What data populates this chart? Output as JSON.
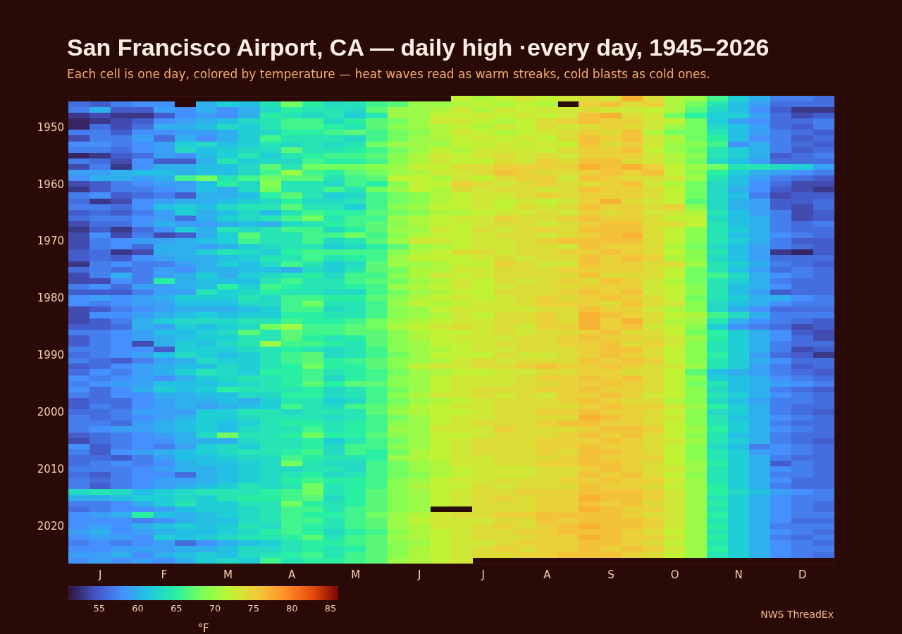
{
  "chart_data": {
    "type": "heatmap",
    "title": "San Francisco Airport, CA — daily high ·every day, 1945–2026",
    "subtitle": "Each cell is one day, colored by temperature — heat waves read as warm streaks, cold blasts as cold ones.",
    "categories": [
      null,
      "J",
      null,
      null,
      "F",
      null,
      null,
      "M",
      null,
      null,
      "A",
      null,
      null,
      "M",
      null,
      null,
      "J",
      null,
      null,
      "J",
      null,
      null,
      "A",
      null,
      null,
      "S",
      null,
      null,
      "O",
      null,
      null,
      "N",
      null,
      null,
      "D",
      null
    ],
    "y_categories": [
      null,
      null,
      null,
      null,
      null,
      "1950",
      null,
      null,
      null,
      null,
      null,
      null,
      null,
      null,
      null,
      "1960",
      null,
      null,
      null,
      null,
      null,
      null,
      null,
      null,
      null,
      "1970",
      null,
      null,
      null,
      null,
      null,
      null,
      null,
      null,
      null,
      "1980",
      null,
      null,
      null,
      null,
      null,
      null,
      null,
      null,
      null,
      "1990",
      null,
      null,
      null,
      null,
      null,
      null,
      null,
      null,
      null,
      "2000",
      null,
      null,
      null,
      null,
      null,
      null,
      null,
      null,
      null,
      "2010",
      null,
      null,
      null,
      null,
      null,
      null,
      null,
      null,
      null,
      "2020",
      null,
      null,
      null,
      null,
      null,
      null
    ],
    "cells": [
      [
        null,
        null,
        null,
        null,
        null,
        null,
        null,
        null,
        null,
        null,
        null,
        null,
        null,
        null,
        null,
        null,
        null,
        null,
        72,
        71,
        72,
        73,
        72,
        73,
        74,
        73,
        77,
        74,
        71,
        70,
        66,
        62,
        60,
        57,
        57,
        56
      ],
      [
        56,
        55,
        57,
        58,
        58,
        null,
        60,
        62,
        61,
        64,
        68,
        65,
        63,
        64,
        66,
        67,
        70,
        70,
        71,
        72,
        71,
        72,
        71,
        null,
        75,
        76,
        74,
        75,
        71,
        68,
        64,
        61,
        59,
        56,
        56,
        56
      ],
      [
        57,
        60,
        55,
        55,
        59,
        58,
        60,
        58,
        60,
        63,
        65,
        64,
        64,
        63,
        67,
        70,
        70,
        71,
        73,
        71,
        73,
        72,
        73,
        73,
        74,
        73,
        73,
        72,
        71,
        67,
        63,
        61,
        58,
        55,
        53,
        53
      ],
      [
        53,
        54,
        53,
        53,
        55,
        58,
        59,
        58,
        60,
        65,
        64,
        63,
        64,
        62,
        64,
        70,
        70,
        72,
        72,
        73,
        72,
        73,
        72,
        73,
        76,
        77,
        74,
        73,
        68,
        65,
        62,
        62,
        59,
        56,
        54,
        55
      ],
      [
        52,
        53,
        54,
        55,
        58,
        59,
        60,
        61,
        63,
        64,
        66,
        66,
        63,
        65,
        67,
        68,
        70,
        73,
        73,
        72,
        71,
        72,
        74,
        75,
        76,
        75,
        75,
        73,
        72,
        68,
        62,
        59,
        58,
        56,
        56,
        57
      ],
      [
        52,
        56,
        54,
        56,
        60,
        60,
        61,
        63,
        62,
        64,
        66,
        66,
        65,
        64,
        67,
        69,
        70,
        71,
        72,
        71,
        73,
        72,
        74,
        73,
        74,
        75,
        74,
        73,
        70,
        68,
        63,
        61,
        59,
        56,
        55,
        57
      ],
      [
        57,
        57,
        55,
        58,
        58,
        59,
        59,
        60,
        62,
        63,
        65,
        65,
        66,
        67,
        66,
        68,
        69,
        71,
        73,
        72,
        71,
        72,
        73,
        74,
        75,
        74,
        76,
        71,
        68,
        68,
        64,
        61,
        59,
        57,
        56,
        55
      ],
      [
        54,
        57,
        57,
        59,
        56,
        60,
        58,
        60,
        62,
        66,
        64,
        64,
        64,
        63,
        66,
        68,
        70,
        71,
        72,
        73,
        72,
        73,
        72,
        74,
        76,
        75,
        76,
        73,
        71,
        68,
        65,
        61,
        58,
        57,
        55,
        56
      ],
      [
        58,
        58,
        57,
        58,
        59,
        62,
        63,
        61,
        62,
        64,
        63,
        64,
        63,
        64,
        68,
        70,
        70,
        70,
        72,
        72,
        73,
        72,
        73,
        72,
        76,
        74,
        75,
        73,
        70,
        69,
        66,
        58,
        60,
        57,
        56,
        55
      ],
      [
        57,
        57,
        56,
        58,
        59,
        63,
        61,
        62,
        63,
        63,
        67,
        64,
        64,
        65,
        66,
        68,
        70,
        72,
        71,
        73,
        73,
        73,
        72,
        74,
        75,
        75,
        76,
        72,
        70,
        68,
        64,
        62,
        60,
        57,
        55,
        56
      ],
      [
        52,
        53,
        55,
        56,
        59,
        58,
        61,
        62,
        64,
        62,
        64,
        65,
        66,
        66,
        67,
        69,
        71,
        73,
        72,
        73,
        74,
        73,
        74,
        73,
        75,
        75,
        75,
        73,
        71,
        69,
        64,
        62,
        60,
        55,
        56,
        57
      ],
      [
        57,
        56,
        54,
        58,
        55,
        55,
        60,
        64,
        62,
        63,
        63,
        66,
        65,
        65,
        66,
        69,
        71,
        73,
        72,
        72,
        74,
        73,
        75,
        74,
        76,
        76,
        74,
        73,
        71,
        68,
        63,
        61,
        59,
        56,
        56,
        56
      ],
      [
        54,
        57,
        53,
        58,
        60,
        60,
        61,
        61,
        63,
        67,
        64,
        68,
        68,
        68,
        69,
        70,
        72,
        72,
        74,
        74,
        75,
        75,
        75,
        75,
        77,
        76,
        77,
        75,
        72,
        70,
        68,
        64,
        64,
        63,
        62,
        59
      ],
      [
        59,
        59,
        60,
        61,
        61,
        60,
        61,
        61,
        63,
        66,
        70,
        66,
        65,
        67,
        68,
        70,
        71,
        73,
        73,
        74,
        76,
        75,
        74,
        74,
        75,
        76,
        75,
        76,
        72,
        69,
        65,
        62,
        60,
        59,
        58,
        57
      ],
      [
        58,
        60,
        60,
        59,
        60,
        66,
        68,
        64,
        66,
        68,
        67,
        67,
        64,
        66,
        67,
        72,
        72,
        71,
        73,
        72,
        74,
        75,
        75,
        73,
        76,
        75,
        74,
        74,
        73,
        70,
        64,
        61,
        59,
        57,
        56,
        55
      ],
      [
        54,
        55,
        57,
        58,
        59,
        59,
        61,
        65,
        63,
        69,
        64,
        64,
        63,
        66,
        65,
        69,
        72,
        72,
        75,
        74,
        73,
        74,
        75,
        74,
        74,
        75,
        76,
        73,
        71,
        68,
        63,
        61,
        58,
        56,
        54,
        54
      ],
      [
        53,
        55,
        57,
        57,
        58,
        59,
        61,
        60,
        63,
        68,
        64,
        64,
        66,
        64,
        68,
        70,
        72,
        71,
        74,
        73,
        74,
        74,
        73,
        74,
        76,
        75,
        75,
        74,
        72,
        68,
        63,
        60,
        58,
        55,
        54,
        53
      ],
      [
        57,
        58,
        55,
        56,
        57,
        55,
        60,
        60,
        61,
        65,
        67,
        64,
        62,
        63,
        66,
        68,
        69,
        71,
        72,
        73,
        73,
        74,
        75,
        74,
        75,
        75,
        75,
        74,
        72,
        68,
        63,
        61,
        57,
        54,
        55,
        55
      ],
      [
        56,
        53,
        54,
        58,
        59,
        60,
        60,
        61,
        62,
        63,
        65,
        63,
        63,
        64,
        66,
        68,
        69,
        71,
        72,
        73,
        72,
        73,
        72,
        73,
        75,
        77,
        74,
        73,
        72,
        67,
        63,
        60,
        59,
        55,
        55,
        56
      ],
      [
        57,
        57,
        56,
        58,
        61,
        62,
        61,
        63,
        64,
        64,
        67,
        64,
        64,
        62,
        66,
        69,
        70,
        72,
        72,
        73,
        72,
        74,
        73,
        74,
        76,
        75,
        75,
        74,
        75,
        69,
        63,
        60,
        59,
        55,
        54,
        56
      ],
      [
        55,
        56,
        55,
        57,
        59,
        62,
        60,
        61,
        63,
        61,
        64,
        66,
        65,
        65,
        67,
        68,
        69,
        71,
        71,
        72,
        73,
        73,
        74,
        73,
        75,
        74,
        75,
        73,
        73,
        71,
        64,
        61,
        59,
        57,
        54,
        55
      ],
      [
        56,
        57,
        57,
        58,
        59,
        56,
        60,
        62,
        63,
        64,
        66,
        68,
        64,
        66,
        66,
        70,
        71,
        72,
        73,
        73,
        75,
        74,
        74,
        75,
        76,
        75,
        75,
        74,
        72,
        72,
        63,
        61,
        60,
        57,
        54,
        55
      ],
      [
        54,
        56,
        56,
        58,
        60,
        59,
        59,
        60,
        61,
        60,
        63,
        64,
        65,
        66,
        67,
        69,
        71,
        72,
        72,
        73,
        74,
        74,
        73,
        74,
        75,
        76,
        76,
        74,
        74,
        72,
        64,
        61,
        60,
        57,
        56,
        57
      ],
      [
        53,
        55,
        53,
        56,
        58,
        62,
        60,
        64,
        63,
        64,
        66,
        66,
        63,
        65,
        67,
        70,
        70,
        73,
        72,
        74,
        73,
        74,
        75,
        74,
        76,
        76,
        76,
        74,
        72,
        69,
        64,
        62,
        60,
        57,
        56,
        56
      ],
      [
        54,
        58,
        54,
        57,
        54,
        55,
        60,
        62,
        67,
        64,
        64,
        66,
        66,
        68,
        66,
        69,
        71,
        72,
        72,
        73,
        74,
        74,
        73,
        74,
        75,
        76,
        77,
        74,
        72,
        69,
        64,
        61,
        60,
        58,
        57,
        56
      ],
      [
        54,
        57,
        58,
        59,
        59,
        60,
        61,
        62,
        66,
        64,
        64,
        66,
        63,
        64,
        67,
        70,
        73,
        73,
        72,
        73,
        73,
        74,
        75,
        76,
        76,
        76,
        76,
        74,
        72,
        69,
        64,
        62,
        60,
        57,
        55,
        55
      ],
      [
        54,
        57,
        58,
        56,
        60,
        60,
        59,
        60,
        62,
        63,
        64,
        64,
        62,
        63,
        65,
        67,
        70,
        71,
        72,
        73,
        73,
        74,
        74,
        73,
        76,
        75,
        75,
        74,
        71,
        68,
        63,
        61,
        59,
        57,
        56,
        55
      ],
      [
        55,
        56,
        53,
        54,
        60,
        60,
        62,
        64,
        63,
        62,
        65,
        66,
        66,
        66,
        66,
        69,
        71,
        72,
        74,
        74,
        73,
        74,
        74,
        75,
        75,
        76,
        75,
        74,
        72,
        69,
        64,
        61,
        59,
        53,
        52,
        55
      ],
      [
        55,
        56,
        55,
        58,
        59,
        60,
        60,
        61,
        62,
        64,
        64,
        66,
        64,
        65,
        66,
        70,
        72,
        72,
        72,
        73,
        74,
        73,
        74,
        74,
        76,
        75,
        76,
        75,
        71,
        69,
        63,
        61,
        59,
        56,
        56,
        56
      ],
      [
        53,
        57,
        58,
        57,
        57,
        59,
        60,
        62,
        61,
        63,
        66,
        64,
        62,
        63,
        67,
        70,
        70,
        71,
        72,
        72,
        75,
        74,
        73,
        73,
        76,
        75,
        75,
        74,
        74,
        70,
        64,
        62,
        60,
        57,
        56,
        55
      ],
      [
        56,
        57,
        56,
        57,
        59,
        58,
        60,
        60,
        61,
        61,
        60,
        63,
        62,
        64,
        67,
        68,
        71,
        71,
        73,
        73,
        74,
        74,
        74,
        75,
        75,
        75,
        75,
        74,
        72,
        68,
        64,
        61,
        59,
        56,
        57,
        56
      ],
      [
        54,
        57,
        60,
        57,
        59,
        60,
        62,
        60,
        62,
        63,
        64,
        65,
        63,
        66,
        66,
        69,
        71,
        73,
        72,
        73,
        74,
        74,
        74,
        74,
        76,
        74,
        74,
        74,
        72,
        68,
        66,
        63,
        60,
        58,
        57,
        56
      ],
      [
        54,
        54,
        58,
        57,
        65,
        60,
        61,
        61,
        61,
        64,
        66,
        64,
        64,
        66,
        67,
        68,
        70,
        71,
        73,
        72,
        74,
        73,
        74,
        75,
        74,
        76,
        75,
        73,
        71,
        68,
        64,
        62,
        60,
        57,
        56,
        56
      ],
      [
        57,
        58,
        56,
        59,
        59,
        60,
        61,
        65,
        62,
        66,
        65,
        64,
        64,
        65,
        66,
        70,
        71,
        72,
        73,
        72,
        73,
        74,
        74,
        74,
        75,
        75,
        75,
        73,
        72,
        69,
        64,
        61,
        60,
        58,
        56,
        56
      ],
      [
        55,
        55,
        55,
        57,
        59,
        59,
        64,
        62,
        63,
        65,
        64,
        64,
        63,
        63,
        66,
        68,
        70,
        71,
        72,
        72,
        74,
        74,
        74,
        75,
        76,
        75,
        76,
        73,
        72,
        69,
        64,
        61,
        59,
        55,
        56,
        56
      ],
      [
        58,
        59,
        58,
        59,
        60,
        62,
        62,
        62,
        64,
        63,
        66,
        66,
        65,
        65,
        67,
        69,
        71,
        72,
        73,
        72,
        73,
        74,
        75,
        74,
        75,
        76,
        75,
        74,
        72,
        68,
        64,
        62,
        60,
        60,
        58,
        57
      ],
      [
        58,
        57,
        58,
        59,
        59,
        61,
        61,
        61,
        63,
        63,
        66,
        68,
        64,
        64,
        66,
        70,
        72,
        71,
        72,
        73,
        73,
        74,
        75,
        75,
        75,
        74,
        76,
        74,
        73,
        69,
        63,
        61,
        60,
        58,
        57,
        57
      ],
      [
        54,
        55,
        57,
        58,
        59,
        60,
        60,
        60,
        61,
        62,
        66,
        66,
        63,
        64,
        66,
        69,
        70,
        72,
        73,
        73,
        73,
        73,
        74,
        74,
        76,
        75,
        75,
        73,
        71,
        69,
        63,
        60,
        58,
        56,
        56,
        56
      ],
      [
        54,
        58,
        58,
        59,
        60,
        61,
        62,
        61,
        62,
        62,
        65,
        65,
        64,
        64,
        66,
        69,
        70,
        71,
        73,
        72,
        74,
        74,
        75,
        74,
        77,
        76,
        75,
        74,
        72,
        71,
        66,
        63,
        60,
        57,
        57,
        57
      ],
      [
        54,
        55,
        57,
        60,
        62,
        63,
        63,
        63,
        64,
        64,
        66,
        65,
        65,
        66,
        68,
        70,
        71,
        72,
        73,
        73,
        74,
        74,
        75,
        74,
        77,
        75,
        77,
        74,
        71,
        70,
        64,
        60,
        58,
        57,
        56,
        55
      ],
      [
        55,
        55,
        56,
        60,
        59,
        62,
        61,
        62,
        63,
        68,
        70,
        66,
        66,
        67,
        68,
        71,
        72,
        73,
        74,
        73,
        74,
        73,
        75,
        75,
        77,
        75,
        76,
        73,
        72,
        69,
        62,
        58,
        57,
        56,
        54,
        55
      ],
      [
        57,
        57,
        58,
        59,
        61,
        61,
        62,
        63,
        67,
        64,
        67,
        66,
        66,
        67,
        67,
        69,
        71,
        72,
        72,
        73,
        74,
        73,
        74,
        74,
        75,
        76,
        74,
        74,
        72,
        68,
        65,
        62,
        60,
        58,
        55,
        54
      ],
      [
        55,
        57,
        58,
        59,
        60,
        61,
        62,
        62,
        64,
        64,
        67,
        65,
        64,
        65,
        67,
        69,
        71,
        72,
        73,
        73,
        73,
        74,
        74,
        75,
        76,
        75,
        75,
        74,
        73,
        70,
        65,
        62,
        60,
        58,
        56,
        54
      ],
      [
        55,
        57,
        58,
        54,
        60,
        62,
        61,
        63,
        64,
        70,
        66,
        66,
        65,
        64,
        67,
        69,
        70,
        72,
        72,
        73,
        74,
        74,
        74,
        75,
        75,
        76,
        74,
        75,
        73,
        69,
        64,
        62,
        60,
        57,
        56,
        56
      ],
      [
        57,
        57,
        58,
        58,
        55,
        62,
        62,
        62,
        63,
        64,
        65,
        64,
        63,
        64,
        66,
        69,
        70,
        71,
        72,
        73,
        73,
        74,
        74,
        74,
        75,
        76,
        76,
        74,
        72,
        69,
        64,
        62,
        60,
        57,
        54,
        55
      ],
      [
        56,
        57,
        58,
        59,
        61,
        63,
        62,
        61,
        62,
        64,
        66,
        67,
        63,
        64,
        66,
        68,
        70,
        72,
        72,
        72,
        74,
        73,
        73,
        74,
        75,
        76,
        75,
        74,
        72,
        69,
        65,
        62,
        59,
        56,
        55,
        53
      ],
      [
        57,
        56,
        55,
        57,
        59,
        60,
        63,
        62,
        62,
        64,
        66,
        67,
        65,
        66,
        67,
        69,
        70,
        71,
        73,
        74,
        73,
        74,
        74,
        74,
        76,
        75,
        76,
        75,
        72,
        69,
        64,
        62,
        60,
        58,
        56,
        56
      ],
      [
        55,
        56,
        58,
        59,
        60,
        61,
        61,
        63,
        62,
        64,
        65,
        68,
        65,
        65,
        67,
        69,
        72,
        73,
        73,
        74,
        74,
        75,
        76,
        75,
        75,
        76,
        75,
        74,
        73,
        70,
        64,
        62,
        59,
        57,
        55,
        56
      ],
      [
        56,
        58,
        57,
        59,
        60,
        62,
        64,
        63,
        62,
        65,
        65,
        66,
        64,
        65,
        66,
        68,
        70,
        71,
        72,
        72,
        73,
        73,
        74,
        74,
        75,
        75,
        74,
        74,
        72,
        67,
        61,
        60,
        59,
        57,
        56,
        55
      ],
      [
        58,
        57,
        58,
        59,
        58,
        60,
        62,
        63,
        64,
        64,
        65,
        66,
        63,
        65,
        66,
        69,
        70,
        72,
        73,
        73,
        73,
        74,
        75,
        75,
        76,
        75,
        76,
        74,
        72,
        69,
        62,
        61,
        60,
        58,
        57,
        56
      ],
      [
        57,
        58,
        59,
        59,
        61,
        61,
        61,
        62,
        63,
        64,
        65,
        67,
        65,
        67,
        67,
        69,
        70,
        72,
        73,
        73,
        73,
        74,
        74,
        75,
        75,
        76,
        75,
        74,
        72,
        68,
        64,
        61,
        60,
        59,
        58,
        57
      ],
      [
        58,
        56,
        58,
        60,
        62,
        61,
        62,
        65,
        64,
        64,
        64,
        65,
        63,
        64,
        66,
        68,
        70,
        72,
        73,
        74,
        74,
        74,
        75,
        75,
        76,
        75,
        75,
        74,
        72,
        69,
        63,
        61,
        60,
        57,
        56,
        55
      ],
      [
        57,
        56,
        58,
        58,
        60,
        60,
        61,
        61,
        63,
        63,
        65,
        65,
        63,
        64,
        66,
        69,
        71,
        73,
        73,
        74,
        73,
        74,
        73,
        75,
        75,
        76,
        75,
        73,
        72,
        69,
        64,
        62,
        60,
        58,
        57,
        56
      ],
      [
        55,
        56,
        56,
        58,
        59,
        60,
        60,
        61,
        60,
        62,
        64,
        64,
        62,
        63,
        66,
        68,
        70,
        71,
        72,
        73,
        74,
        74,
        74,
        75,
        76,
        75,
        74,
        74,
        71,
        69,
        63,
        61,
        59,
        57,
        57,
        56
      ],
      [
        55,
        57,
        56,
        58,
        59,
        60,
        59,
        60,
        61,
        62,
        66,
        64,
        63,
        66,
        67,
        69,
        71,
        72,
        73,
        73,
        74,
        74,
        74,
        74,
        75,
        76,
        75,
        75,
        73,
        70,
        65,
        62,
        60,
        57,
        56,
        56
      ],
      [
        56,
        56,
        57,
        59,
        59,
        59,
        62,
        62,
        64,
        64,
        63,
        64,
        64,
        64,
        67,
        70,
        71,
        72,
        72,
        73,
        74,
        74,
        75,
        75,
        76,
        75,
        75,
        74,
        72,
        69,
        63,
        62,
        60,
        57,
        56,
        55
      ],
      [
        57,
        56,
        57,
        58,
        59,
        60,
        62,
        62,
        63,
        64,
        64,
        64,
        63,
        64,
        66,
        68,
        70,
        72,
        73,
        73,
        74,
        74,
        74,
        74,
        77,
        76,
        75,
        74,
        73,
        69,
        64,
        61,
        60,
        58,
        57,
        56
      ],
      [
        57,
        57,
        56,
        59,
        60,
        61,
        62,
        61,
        62,
        64,
        65,
        65,
        64,
        65,
        66,
        69,
        70,
        72,
        73,
        74,
        74,
        74,
        75,
        76,
        76,
        75,
        75,
        74,
        72,
        69,
        64,
        62,
        60,
        57,
        56,
        56
      ],
      [
        57,
        58,
        59,
        59,
        60,
        61,
        62,
        61,
        63,
        64,
        64,
        66,
        64,
        65,
        66,
        70,
        70,
        73,
        73,
        73,
        75,
        74,
        74,
        74,
        75,
        76,
        76,
        75,
        72,
        70,
        65,
        62,
        60,
        58,
        57,
        56
      ],
      [
        55,
        56,
        57,
        58,
        59,
        60,
        63,
        68,
        64,
        64,
        65,
        68,
        65,
        65,
        67,
        69,
        70,
        72,
        72,
        73,
        74,
        74,
        74,
        75,
        76,
        75,
        76,
        74,
        72,
        69,
        64,
        61,
        60,
        57,
        56,
        56
      ],
      [
        54,
        56,
        57,
        58,
        58,
        60,
        60,
        60,
        63,
        64,
        64,
        65,
        62,
        64,
        66,
        68,
        70,
        72,
        73,
        74,
        74,
        74,
        75,
        75,
        75,
        76,
        75,
        74,
        73,
        70,
        64,
        62,
        60,
        57,
        56,
        55
      ],
      [
        58,
        55,
        57,
        58,
        57,
        59,
        62,
        63,
        62,
        64,
        64,
        65,
        63,
        66,
        66,
        69,
        70,
        72,
        73,
        74,
        74,
        74,
        75,
        75,
        76,
        75,
        75,
        74,
        72,
        69,
        63,
        61,
        57,
        58,
        57,
        56
      ],
      [
        57,
        55,
        58,
        59,
        60,
        61,
        62,
        63,
        64,
        64,
        65,
        66,
        63,
        66,
        65,
        68,
        71,
        72,
        73,
        74,
        74,
        74,
        75,
        74,
        76,
        76,
        75,
        74,
        72,
        69,
        64,
        62,
        59,
        58,
        57,
        56
      ],
      [
        56,
        56,
        55,
        57,
        59,
        61,
        61,
        62,
        63,
        63,
        66,
        65,
        64,
        64,
        65,
        70,
        71,
        72,
        73,
        73,
        74,
        74,
        74,
        75,
        76,
        75,
        75,
        75,
        72,
        69,
        64,
        62,
        60,
        57,
        56,
        56
      ],
      [
        56,
        57,
        58,
        57,
        58,
        60,
        61,
        61,
        62,
        63,
        68,
        64,
        63,
        63,
        66,
        68,
        70,
        71,
        73,
        73,
        74,
        74,
        75,
        75,
        76,
        76,
        75,
        74,
        72,
        70,
        65,
        62,
        60,
        55,
        57,
        56
      ],
      [
        57,
        57,
        57,
        58,
        59,
        60,
        60,
        61,
        62,
        63,
        63,
        64,
        64,
        63,
        66,
        68,
        70,
        71,
        72,
        73,
        73,
        73,
        74,
        74,
        75,
        76,
        75,
        74,
        73,
        70,
        64,
        62,
        60,
        58,
        57,
        56
      ],
      [
        56,
        55,
        57,
        58,
        58,
        56,
        60,
        61,
        62,
        63,
        64,
        65,
        63,
        64,
        66,
        68,
        69,
        71,
        72,
        73,
        73,
        73,
        74,
        74,
        76,
        75,
        76,
        74,
        72,
        69,
        64,
        62,
        60,
        57,
        57,
        56
      ],
      [
        57,
        56,
        57,
        58,
        59,
        59,
        60,
        61,
        62,
        63,
        65,
        66,
        65,
        65,
        66,
        69,
        70,
        72,
        73,
        73,
        74,
        74,
        74,
        75,
        75,
        76,
        75,
        75,
        73,
        70,
        64,
        62,
        60,
        58,
        56,
        56
      ],
      [
        57,
        55,
        57,
        58,
        59,
        60,
        61,
        62,
        64,
        63,
        64,
        68,
        64,
        65,
        66,
        69,
        71,
        72,
        72,
        74,
        73,
        74,
        74,
        74,
        76,
        75,
        75,
        74,
        72,
        70,
        65,
        62,
        60,
        57,
        56,
        56
      ],
      [
        63,
        64,
        63,
        61,
        62,
        63,
        64,
        64,
        64,
        65,
        66,
        68,
        64,
        65,
        67,
        69,
        70,
        72,
        73,
        74,
        74,
        75,
        75,
        75,
        76,
        76,
        76,
        75,
        73,
        70,
        65,
        63,
        61,
        59,
        58,
        57
      ],
      [
        60,
        60,
        61,
        62,
        62,
        63,
        62,
        64,
        65,
        65,
        66,
        67,
        63,
        65,
        67,
        69,
        70,
        72,
        73,
        74,
        75,
        74,
        75,
        75,
        77,
        76,
        76,
        75,
        73,
        70,
        64,
        62,
        60,
        58,
        57,
        57
      ],
      [
        57,
        57,
        58,
        60,
        62,
        64,
        62,
        62,
        64,
        64,
        68,
        65,
        64,
        65,
        67,
        69,
        70,
        72,
        73,
        74,
        74,
        74,
        75,
        75,
        76,
        75,
        76,
        74,
        73,
        70,
        65,
        62,
        60,
        58,
        57,
        56
      ],
      [
        56,
        57,
        58,
        58,
        59,
        61,
        62,
        62,
        63,
        64,
        66,
        66,
        64,
        66,
        67,
        69,
        70,
        null,
        null,
        74,
        74,
        74,
        75,
        75,
        77,
        76,
        75,
        75,
        73,
        70,
        64,
        62,
        60,
        58,
        57,
        56
      ],
      [
        58,
        59,
        60,
        65,
        61,
        60,
        61,
        62,
        63,
        64,
        66,
        65,
        65,
        66,
        68,
        70,
        71,
        73,
        74,
        74,
        75,
        75,
        76,
        76,
        76,
        76,
        75,
        74,
        73,
        70,
        65,
        62,
        60,
        58,
        57,
        57
      ],
      [
        58,
        58,
        58,
        57,
        58,
        60,
        61,
        61,
        63,
        64,
        66,
        66,
        64,
        66,
        67,
        70,
        72,
        73,
        73,
        73,
        74,
        74,
        76,
        75,
        76,
        76,
        76,
        75,
        73,
        70,
        64,
        62,
        60,
        58,
        56,
        56
      ],
      [
        58,
        59,
        58,
        60,
        61,
        62,
        61,
        62,
        64,
        63,
        66,
        65,
        64,
        66,
        67,
        70,
        71,
        73,
        73,
        74,
        75,
        74,
        75,
        76,
        77,
        76,
        76,
        75,
        73,
        70,
        65,
        62,
        60,
        57,
        57,
        57
      ],
      [
        59,
        60,
        58,
        59,
        60,
        61,
        61,
        62,
        63,
        65,
        66,
        65,
        63,
        65,
        66,
        69,
        71,
        72,
        73,
        74,
        74,
        75,
        75,
        76,
        76,
        76,
        75,
        74,
        72,
        70,
        64,
        62,
        60,
        58,
        57,
        56
      ],
      [
        58,
        59,
        59,
        58,
        62,
        61,
        62,
        63,
        64,
        64,
        65,
        67,
        64,
        66,
        67,
        70,
        71,
        72,
        73,
        74,
        74,
        74,
        75,
        75,
        77,
        76,
        75,
        75,
        73,
        70,
        65,
        62,
        60,
        57,
        56,
        57
      ],
      [
        57,
        58,
        57,
        58,
        59,
        56,
        58,
        60,
        61,
        62,
        64,
        65,
        65,
        66,
        67,
        69,
        70,
        72,
        73,
        73,
        74,
        75,
        75,
        75,
        76,
        76,
        75,
        74,
        72,
        70,
        64,
        62,
        60,
        58,
        57,
        56
      ],
      [
        58,
        58,
        59,
        59,
        59,
        60,
        60,
        61,
        63,
        63,
        64,
        65,
        64,
        65,
        67,
        69,
        71,
        72,
        73,
        74,
        75,
        74,
        75,
        75,
        76,
        75,
        76,
        75,
        73,
        70,
        65,
        62,
        60,
        58,
        57,
        57
      ],
      [
        59,
        59,
        60,
        58,
        60,
        61,
        62,
        61,
        63,
        64,
        65,
        66,
        64,
        66,
        67,
        69,
        71,
        72,
        73,
        74,
        74,
        75,
        75,
        76,
        76,
        76,
        75,
        74,
        72,
        70,
        64,
        62,
        60,
        58,
        57,
        56
      ],
      [
        58,
        59,
        58,
        59,
        58,
        60,
        62,
        63,
        62,
        66,
        64,
        65,
        65,
        66,
        67,
        70,
        71,
        72,
        73,
        null,
        null,
        null,
        null,
        null,
        null,
        null,
        null,
        null,
        null,
        null,
        null,
        null,
        null,
        null,
        null,
        null
      ]
    ],
    "clim": [
      51,
      86
    ],
    "cticks": [
      55,
      60,
      65,
      70,
      75,
      80,
      85
    ],
    "clabel": "°F",
    "annotations": [
      "NWS ThreadEx"
    ]
  }
}
